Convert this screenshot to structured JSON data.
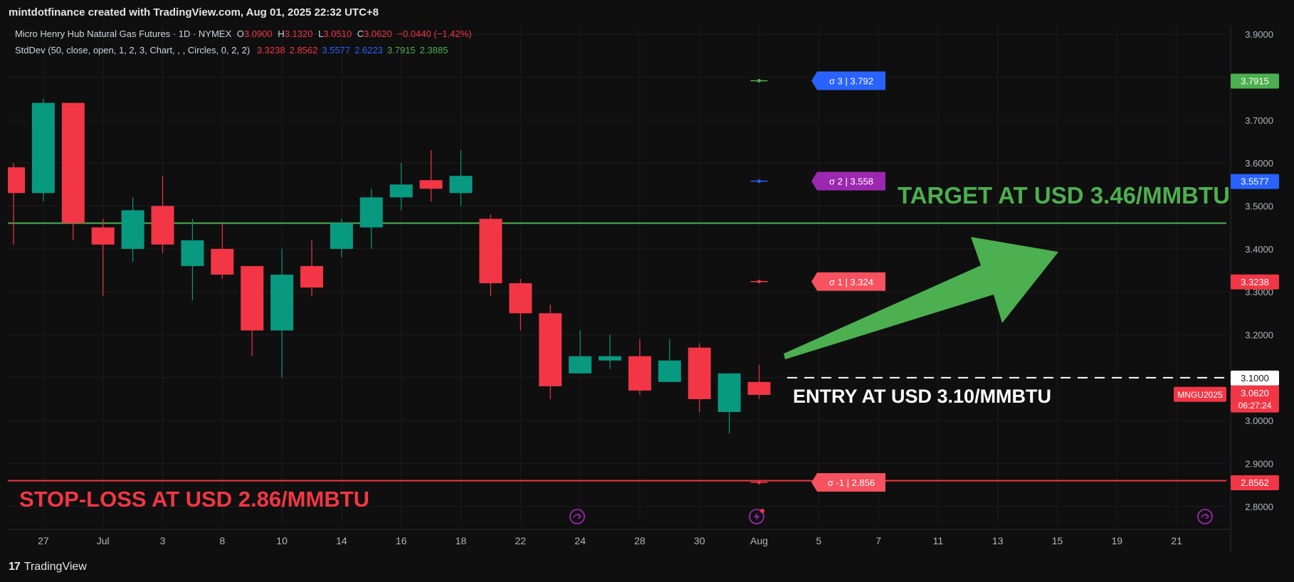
{
  "header": {
    "credit": "mintdotfinance created with TradingView.com, Aug 01, 2025 22:32 UTC+8"
  },
  "legend": {
    "symbol": "Micro Henry Hub Natural Gas Futures · 1D · NYMEX",
    "o_label": "O",
    "o_value": "3.0900",
    "h_label": "H",
    "h_value": "3.1320",
    "l_label": "L",
    "l_value": "3.0510",
    "c_label": "C",
    "c_value": "3.0620",
    "change": "−0.0440 (−1.42%)",
    "indicator": "StdDev (50, close, open, 1, 2, 3, Chart, , , Circles, 0, 2, 2)",
    "ind_values": [
      {
        "text": "3.3238",
        "color": "#f23645"
      },
      {
        "text": "2.8562",
        "color": "#f23645"
      },
      {
        "text": "3.5577",
        "color": "#2962ff"
      },
      {
        "text": "2.6223",
        "color": "#2962ff"
      },
      {
        "text": "3.7915",
        "color": "#4caf50"
      },
      {
        "text": "2.3885",
        "color": "#4caf50"
      }
    ]
  },
  "footer": {
    "brand": "TradingView",
    "brand_mark": "17"
  },
  "colors": {
    "up": "#089981",
    "down": "#f23645",
    "target": "#4caf50",
    "bg": "#0f0f0f",
    "grid": "#1f1f1f"
  },
  "chart_data": {
    "type": "candlestick",
    "y_range": [
      2.76,
      3.92
    ],
    "y_ticks": [
      "2.8000",
      "2.9000",
      "3.0000",
      "3.1000",
      "3.2000",
      "3.3000",
      "3.4000",
      "3.5000",
      "3.6000",
      "3.7000",
      "3.8000",
      "3.9000"
    ],
    "x_labels": [
      {
        "i": 1,
        "label": "27"
      },
      {
        "i": 3,
        "label": "Jul"
      },
      {
        "i": 5,
        "label": "3"
      },
      {
        "i": 7,
        "label": "8"
      },
      {
        "i": 9,
        "label": "10"
      },
      {
        "i": 11,
        "label": "14"
      },
      {
        "i": 13,
        "label": "16"
      },
      {
        "i": 15,
        "label": "18"
      },
      {
        "i": 17,
        "label": "22"
      },
      {
        "i": 19,
        "label": "24"
      },
      {
        "i": 21,
        "label": "28"
      },
      {
        "i": 23,
        "label": "30"
      },
      {
        "i": 25,
        "label": "Aug"
      },
      {
        "i": 27,
        "label": "5"
      },
      {
        "i": 29,
        "label": "7"
      },
      {
        "i": 31,
        "label": "11"
      },
      {
        "i": 33,
        "label": "13"
      },
      {
        "i": 35,
        "label": "15"
      },
      {
        "i": 37,
        "label": "19"
      },
      {
        "i": 39,
        "label": "21"
      }
    ],
    "x_slots": 41,
    "candles": [
      {
        "i": 0,
        "o": 3.59,
        "h": 3.6,
        "l": 3.41,
        "c": 3.53
      },
      {
        "i": 1,
        "o": 3.53,
        "h": 3.75,
        "l": 3.51,
        "c": 3.74
      },
      {
        "i": 2,
        "o": 3.74,
        "h": 3.74,
        "l": 3.42,
        "c": 3.46
      },
      {
        "i": 3,
        "o": 3.45,
        "h": 3.47,
        "l": 3.29,
        "c": 3.41
      },
      {
        "i": 4,
        "o": 3.4,
        "h": 3.52,
        "l": 3.37,
        "c": 3.49
      },
      {
        "i": 5,
        "o": 3.5,
        "h": 3.57,
        "l": 3.39,
        "c": 3.41
      },
      {
        "i": 6,
        "o": 3.36,
        "h": 3.47,
        "l": 3.28,
        "c": 3.42
      },
      {
        "i": 7,
        "o": 3.4,
        "h": 3.46,
        "l": 3.33,
        "c": 3.34
      },
      {
        "i": 8,
        "o": 3.36,
        "h": 3.36,
        "l": 3.15,
        "c": 3.21
      },
      {
        "i": 9,
        "o": 3.21,
        "h": 3.4,
        "l": 3.1,
        "c": 3.34
      },
      {
        "i": 10,
        "o": 3.36,
        "h": 3.42,
        "l": 3.29,
        "c": 3.31
      },
      {
        "i": 11,
        "o": 3.4,
        "h": 3.47,
        "l": 3.38,
        "c": 3.46
      },
      {
        "i": 12,
        "o": 3.45,
        "h": 3.54,
        "l": 3.4,
        "c": 3.52
      },
      {
        "i": 13,
        "o": 3.52,
        "h": 3.6,
        "l": 3.49,
        "c": 3.55
      },
      {
        "i": 14,
        "o": 3.56,
        "h": 3.63,
        "l": 3.51,
        "c": 3.54
      },
      {
        "i": 15,
        "o": 3.53,
        "h": 3.63,
        "l": 3.5,
        "c": 3.57
      },
      {
        "i": 16,
        "o": 3.47,
        "h": 3.48,
        "l": 3.29,
        "c": 3.32
      },
      {
        "i": 17,
        "o": 3.32,
        "h": 3.33,
        "l": 3.21,
        "c": 3.25
      },
      {
        "i": 18,
        "o": 3.25,
        "h": 3.27,
        "l": 3.05,
        "c": 3.08
      },
      {
        "i": 19,
        "o": 3.11,
        "h": 3.21,
        "l": 3.11,
        "c": 3.15
      },
      {
        "i": 20,
        "o": 3.14,
        "h": 3.2,
        "l": 3.12,
        "c": 3.15
      },
      {
        "i": 21,
        "o": 3.15,
        "h": 3.19,
        "l": 3.06,
        "c": 3.07
      },
      {
        "i": 22,
        "o": 3.09,
        "h": 3.19,
        "l": 3.09,
        "c": 3.14
      },
      {
        "i": 23,
        "o": 3.17,
        "h": 3.18,
        "l": 3.02,
        "c": 3.05
      },
      {
        "i": 24,
        "o": 3.02,
        "h": 3.11,
        "l": 2.97,
        "c": 3.11
      },
      {
        "i": 25,
        "o": 3.09,
        "h": 3.13,
        "l": 3.05,
        "c": 3.06
      }
    ],
    "stddev_markers": [
      {
        "value": 3.7915,
        "color": "#4caf50",
        "label": "σ 3 | 3.792",
        "label_color": "#2962ff"
      },
      {
        "value": 3.5577,
        "color": "#2962ff",
        "label": "σ 2 | 3.558",
        "label_color": "#9c27b0"
      },
      {
        "value": 3.3238,
        "color": "#f23645",
        "label": "σ 1 | 3.324",
        "label_color": "#f7525f"
      },
      {
        "value": 2.8562,
        "color": "#f23645",
        "label": "σ -1 | 2.856",
        "label_color": "#f7525f"
      }
    ],
    "axis_badges": [
      {
        "value": 3.7915,
        "text": "3.7915",
        "color": "#4caf50"
      },
      {
        "value": 3.5577,
        "text": "3.5577",
        "color": "#2962ff"
      },
      {
        "value": 3.3238,
        "text": "3.3238",
        "color": "#f23645"
      },
      {
        "value": 3.1,
        "text": "3.1000",
        "color": "#ffffff",
        "text_color": "#131722"
      },
      {
        "value": 2.8562,
        "text": "2.8562",
        "color": "#f23645"
      }
    ],
    "last_price": {
      "value": 3.062,
      "text": "3.0620",
      "countdown": "06:27:24",
      "symbol_tag": "MNGU2025",
      "color": "#f23645"
    },
    "target_line": {
      "value": 3.46,
      "label": "TARGET AT USD 3.46/MMBTU",
      "color": "#4caf50"
    },
    "entry_line": {
      "value": 3.1,
      "label": "ENTRY AT USD 3.10/MMBTU",
      "color": "#ffffff"
    },
    "stop_line": {
      "value": 2.86,
      "label": "STOP-LOSS AT USD 2.86/MMBTU",
      "color": "#f23645"
    }
  }
}
